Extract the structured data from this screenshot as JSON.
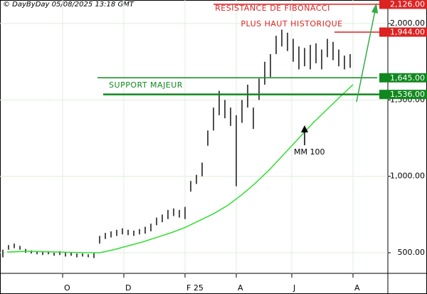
{
  "chart_data": {
    "type": "ohlc",
    "credit": "© DayByDay 05/08/2025 13:18 GMT",
    "xlim": [
      0,
      272.5
    ],
    "ylim": [
      365,
      2154
    ],
    "xticks": [
      {
        "value": 44,
        "label": "O"
      },
      {
        "value": 87,
        "label": "D"
      },
      {
        "value": 130,
        "label": "F 25"
      },
      {
        "value": 166,
        "label": "A"
      },
      {
        "value": 205,
        "label": "J"
      },
      {
        "value": 248,
        "label": "A"
      }
    ],
    "yticks": [
      {
        "value": 500,
        "label": "500.00"
      },
      {
        "value": 1000,
        "label": "1,000.00"
      },
      {
        "value": 1500,
        "label": "1,500.00"
      },
      {
        "value": 2000,
        "label": "2,000.00"
      }
    ],
    "grid": true,
    "color": "#222222",
    "x": [
      2,
      6,
      10,
      14,
      18,
      22,
      26,
      30,
      34,
      38,
      42,
      46,
      50,
      54,
      58,
      62,
      66,
      70,
      74,
      78,
      82,
      86,
      90,
      94,
      98,
      102,
      106,
      110,
      114,
      118,
      122,
      126,
      130,
      134,
      138,
      142,
      146,
      150,
      154,
      158,
      162,
      166,
      170,
      174,
      178,
      182,
      186,
      190,
      194,
      198,
      202,
      206,
      210,
      214,
      218,
      222,
      226,
      230,
      234,
      238,
      242,
      246
    ],
    "high": [
      520,
      550,
      560,
      545,
      525,
      515,
      510,
      505,
      510,
      500,
      510,
      500,
      500,
      495,
      495,
      490,
      500,
      610,
      630,
      640,
      650,
      660,
      650,
      645,
      655,
      670,
      690,
      730,
      750,
      780,
      790,
      780,
      800,
      970,
      1010,
      1090,
      1300,
      1450,
      1560,
      1500,
      1450,
      1400,
      1500,
      1600,
      1450,
      1640,
      1750,
      1800,
      1920,
      1960,
      1940,
      1900,
      1850,
      1840,
      1860,
      1870,
      1830,
      1900,
      1880,
      1830,
      1790,
      1800
    ],
    "low": [
      470,
      520,
      530,
      520,
      500,
      495,
      490,
      485,
      490,
      480,
      485,
      475,
      480,
      470,
      475,
      470,
      465,
      560,
      590,
      600,
      610,
      620,
      615,
      610,
      620,
      625,
      640,
      680,
      700,
      720,
      740,
      730,
      720,
      900,
      950,
      1000,
      1200,
      1300,
      1400,
      1380,
      1330,
      935,
      1350,
      1450,
      1310,
      1500,
      1600,
      1650,
      1800,
      1850,
      1820,
      1750,
      1700,
      1720,
      1700,
      1740,
      1700,
      1780,
      1760,
      1720,
      1700,
      1710
    ],
    "ma": {
      "name": "MM 100",
      "color": "#33dd33",
      "x": [
        5,
        20,
        40,
        60,
        70,
        80,
        90,
        100,
        110,
        120,
        130,
        140,
        150,
        160,
        170,
        180,
        190,
        200,
        210,
        220,
        230,
        240,
        248
      ],
      "values": [
        505,
        510,
        505,
        500,
        500,
        520,
        545,
        570,
        600,
        630,
        665,
        710,
        755,
        810,
        880,
        960,
        1050,
        1150,
        1250,
        1350,
        1440,
        1530,
        1600
      ]
    },
    "levels": [
      {
        "value": 2126,
        "label": "2,126.00",
        "color": "#dd2222",
        "text": "RESISTANCE DE FIBONACCI"
      },
      {
        "value": 1944,
        "label": "1,944.00",
        "color": "#dd2222",
        "text": "PLUS HAUT HISTORIQUE"
      },
      {
        "value": 1645,
        "label": "1,645.00",
        "color": "#11881f"
      },
      {
        "value": 1536,
        "label": "1,536.00",
        "color": "#11881f",
        "text": "SUPPORT MAJEUR"
      }
    ],
    "trend_arrow_color": "#33aa44"
  }
}
